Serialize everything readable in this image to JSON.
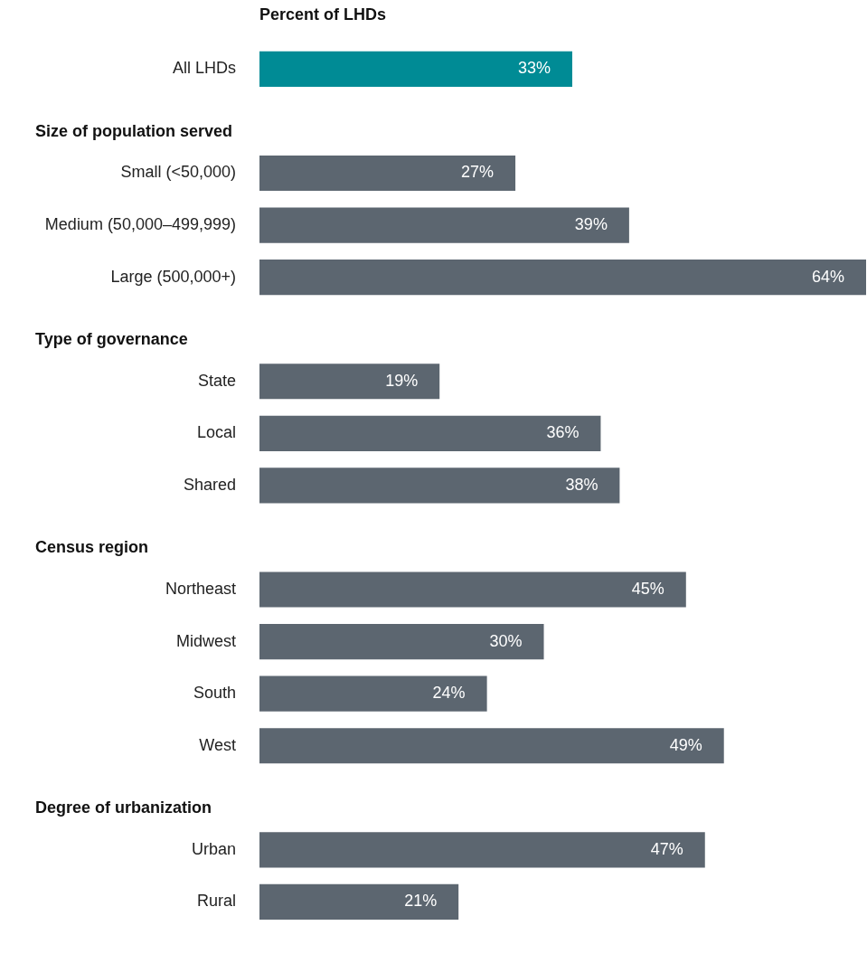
{
  "chart_data": {
    "type": "bar",
    "orientation": "horizontal",
    "title": "Percent of LHDs",
    "categories": [
      "All LHDs",
      null,
      "Small (<50,000)",
      "Medium (50,000–499,999)",
      "Large (500,000+)",
      null,
      "State",
      "Local",
      "Shared",
      null,
      "Northeast",
      "Midwest",
      "South",
      "West",
      null,
      "Urban",
      "Rural"
    ],
    "values": [
      33,
      null,
      27,
      39,
      64,
      null,
      19,
      36,
      38,
      null,
      45,
      30,
      24,
      49,
      null,
      47,
      21
    ],
    "value_labels": [
      "33%",
      null,
      "27%",
      "39%",
      "64%",
      null,
      "19%",
      "36%",
      "38%",
      null,
      "45%",
      "30%",
      "24%",
      "49%",
      null,
      "47%",
      "21%"
    ],
    "colors": [
      "#008b95",
      null,
      "#5c6670",
      "#5c6670",
      "#5c6670",
      null,
      "#5c6670",
      "#5c6670",
      "#5c6670",
      null,
      "#5c6670",
      "#5c6670",
      "#5c6670",
      "#5c6670",
      null,
      "#5c6670",
      "#5c6670"
    ],
    "annotations": [
      "Size of population served",
      "Type of governance",
      "Census region",
      "Degree of urbanization"
    ],
    "legend": false,
    "grid": false
  }
}
